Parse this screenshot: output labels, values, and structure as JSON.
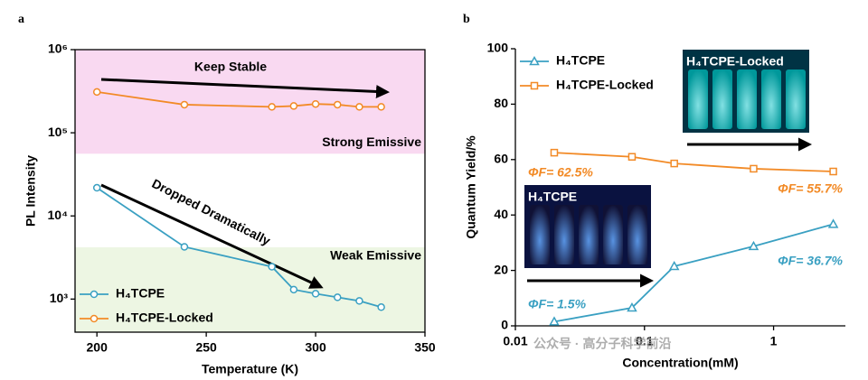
{
  "chart_data": [
    {
      "type": "line",
      "panel_label": "a",
      "xlabel": "Temperature (K)",
      "ylabel": "PL Intensity",
      "xlim": [
        190,
        350
      ],
      "xticks": [
        200,
        250,
        300,
        350
      ],
      "ylim": [
        400,
        1000000
      ],
      "yscale": "log",
      "yticks": [
        {
          "value": 1000,
          "label": "10³"
        },
        {
          "value": 10000,
          "label": "10⁴"
        },
        {
          "value": 100000,
          "label": "10⁵"
        },
        {
          "value": 1000000,
          "label": "10⁶"
        }
      ],
      "legend": "lower left",
      "frame": "box",
      "bands": [
        {
          "from": 56000,
          "to": 1000000,
          "color": "#f9d9f1",
          "label": "Strong Emissive"
        },
        {
          "from": 400,
          "to": 4200,
          "color": "#edf6e3",
          "label": "Weak Emissive"
        }
      ],
      "annotations": [
        {
          "text": "Keep Stable",
          "color": "#000000"
        },
        {
          "text": "Dropped Dramatically",
          "color": "#000000"
        }
      ],
      "series": [
        {
          "name": "H₄TCPE",
          "color": "#3aa0c2",
          "marker": "circle",
          "x": [
            200,
            240,
            280,
            290,
            300,
            310,
            320,
            330
          ],
          "values": [
            21800,
            4250,
            2450,
            1300,
            1160,
            1050,
            950,
            800
          ]
        },
        {
          "name": "H₄TCPE-Locked",
          "color": "#f28a26",
          "marker": "circle",
          "x": [
            200,
            240,
            280,
            290,
            300,
            310,
            320,
            330
          ],
          "values": [
            310000,
            218000,
            205000,
            210000,
            222000,
            218000,
            205000,
            205000
          ]
        }
      ]
    },
    {
      "type": "line",
      "panel_label": "b",
      "xlabel": "Concentration(mM)",
      "ylabel": "Quantum Yield/%",
      "xlim": [
        0.01,
        3.6
      ],
      "xscale": "log",
      "xticks": [
        0.01,
        0.1,
        1
      ],
      "ylim": [
        0,
        100
      ],
      "yticks": [
        0,
        20,
        40,
        60,
        80,
        100
      ],
      "legend": "upper left",
      "frame": "open",
      "annotations": [
        {
          "text": "ΦF= 62.5%",
          "color": "#f28a26"
        },
        {
          "text": "ΦF= 55.7%",
          "color": "#f28a26"
        },
        {
          "text": "ΦF= 36.7%",
          "color": "#3aa0c2"
        },
        {
          "text": "ΦF= 1.5%",
          "color": "#3aa0c2"
        }
      ],
      "insets": [
        {
          "label": "H₄TCPE-Locked"
        },
        {
          "label": "H₄TCPE"
        }
      ],
      "series": [
        {
          "name": "H₄TCPE",
          "color": "#3aa0c2",
          "marker": "triangle",
          "x": [
            0.02,
            0.08,
            0.17,
            0.7,
            2.9
          ],
          "values": [
            1.5,
            6.5,
            21.5,
            28.7,
            36.7
          ]
        },
        {
          "name": "H₄TCPE-Locked",
          "color": "#f28a26",
          "marker": "square",
          "x": [
            0.02,
            0.08,
            0.17,
            0.7,
            2.9
          ],
          "values": [
            62.5,
            61,
            58.6,
            56.7,
            55.7
          ]
        }
      ]
    }
  ],
  "watermark": "公众号 · 高分子科学前沿"
}
